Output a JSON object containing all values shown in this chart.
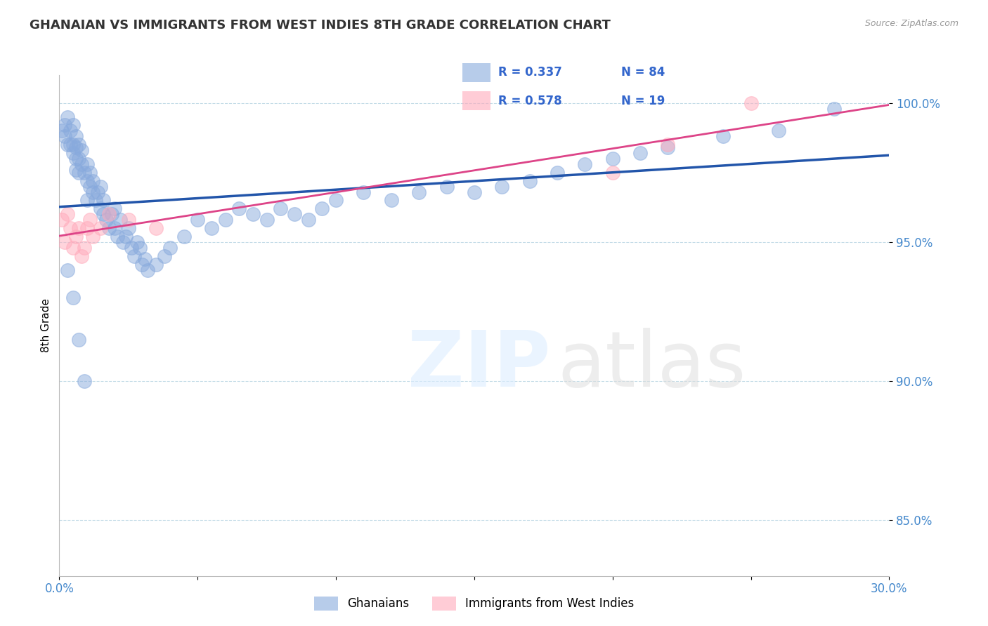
{
  "title": "GHANAIAN VS IMMIGRANTS FROM WEST INDIES 8TH GRADE CORRELATION CHART",
  "source": "Source: ZipAtlas.com",
  "ylabel": "8th Grade",
  "xlim": [
    0.0,
    0.3
  ],
  "ylim": [
    0.83,
    1.01
  ],
  "xticks": [
    0.0,
    0.05,
    0.1,
    0.15,
    0.2,
    0.25,
    0.3
  ],
  "yticks": [
    0.85,
    0.9,
    0.95,
    1.0
  ],
  "ytick_labels": [
    "85.0%",
    "90.0%",
    "95.0%",
    "100.0%"
  ],
  "blue_color": "#88AADD",
  "pink_color": "#FFAABB",
  "blue_line_color": "#2255AA",
  "pink_line_color": "#DD4488",
  "R_blue": 0.337,
  "N_blue": 84,
  "R_pink": 0.578,
  "N_pink": 19,
  "legend_blue_label": "Ghanaians",
  "legend_pink_label": "Immigrants from West Indies",
  "blue_x": [
    0.001,
    0.002,
    0.002,
    0.003,
    0.003,
    0.004,
    0.004,
    0.005,
    0.005,
    0.005,
    0.006,
    0.006,
    0.006,
    0.006,
    0.007,
    0.007,
    0.007,
    0.008,
    0.008,
    0.009,
    0.01,
    0.01,
    0.01,
    0.011,
    0.011,
    0.012,
    0.012,
    0.013,
    0.014,
    0.015,
    0.015,
    0.016,
    0.016,
    0.017,
    0.018,
    0.019,
    0.02,
    0.02,
    0.021,
    0.022,
    0.023,
    0.024,
    0.025,
    0.026,
    0.027,
    0.028,
    0.029,
    0.03,
    0.031,
    0.032,
    0.035,
    0.038,
    0.04,
    0.045,
    0.05,
    0.055,
    0.06,
    0.065,
    0.07,
    0.075,
    0.08,
    0.085,
    0.09,
    0.095,
    0.1,
    0.11,
    0.12,
    0.13,
    0.14,
    0.15,
    0.16,
    0.17,
    0.18,
    0.19,
    0.2,
    0.21,
    0.22,
    0.24,
    0.26,
    0.28,
    0.003,
    0.005,
    0.007,
    0.009
  ],
  "blue_y": [
    0.99,
    0.988,
    0.992,
    0.985,
    0.995,
    0.985,
    0.99,
    0.982,
    0.985,
    0.992,
    0.98,
    0.988,
    0.976,
    0.984,
    0.98,
    0.975,
    0.985,
    0.978,
    0.983,
    0.975,
    0.972,
    0.978,
    0.965,
    0.97,
    0.975,
    0.968,
    0.972,
    0.965,
    0.968,
    0.962,
    0.97,
    0.96,
    0.965,
    0.958,
    0.955,
    0.96,
    0.962,
    0.955,
    0.952,
    0.958,
    0.95,
    0.952,
    0.955,
    0.948,
    0.945,
    0.95,
    0.948,
    0.942,
    0.944,
    0.94,
    0.942,
    0.945,
    0.948,
    0.952,
    0.958,
    0.955,
    0.958,
    0.962,
    0.96,
    0.958,
    0.962,
    0.96,
    0.958,
    0.962,
    0.965,
    0.968,
    0.965,
    0.968,
    0.97,
    0.968,
    0.97,
    0.972,
    0.975,
    0.978,
    0.98,
    0.982,
    0.984,
    0.988,
    0.99,
    0.998,
    0.94,
    0.93,
    0.915,
    0.9
  ],
  "pink_x": [
    0.001,
    0.002,
    0.003,
    0.004,
    0.005,
    0.006,
    0.007,
    0.008,
    0.009,
    0.01,
    0.011,
    0.012,
    0.015,
    0.018,
    0.025,
    0.035,
    0.2,
    0.22,
    0.25
  ],
  "pink_y": [
    0.958,
    0.95,
    0.96,
    0.955,
    0.948,
    0.952,
    0.955,
    0.945,
    0.948,
    0.955,
    0.958,
    0.952,
    0.955,
    0.96,
    0.958,
    0.955,
    0.975,
    0.985,
    1.0
  ],
  "blue_line_x": [
    0.0,
    0.3
  ],
  "blue_line_y": [
    0.945,
    1.0
  ],
  "pink_line_x": [
    0.0,
    0.3
  ],
  "pink_line_y": [
    0.95,
    1.0
  ]
}
